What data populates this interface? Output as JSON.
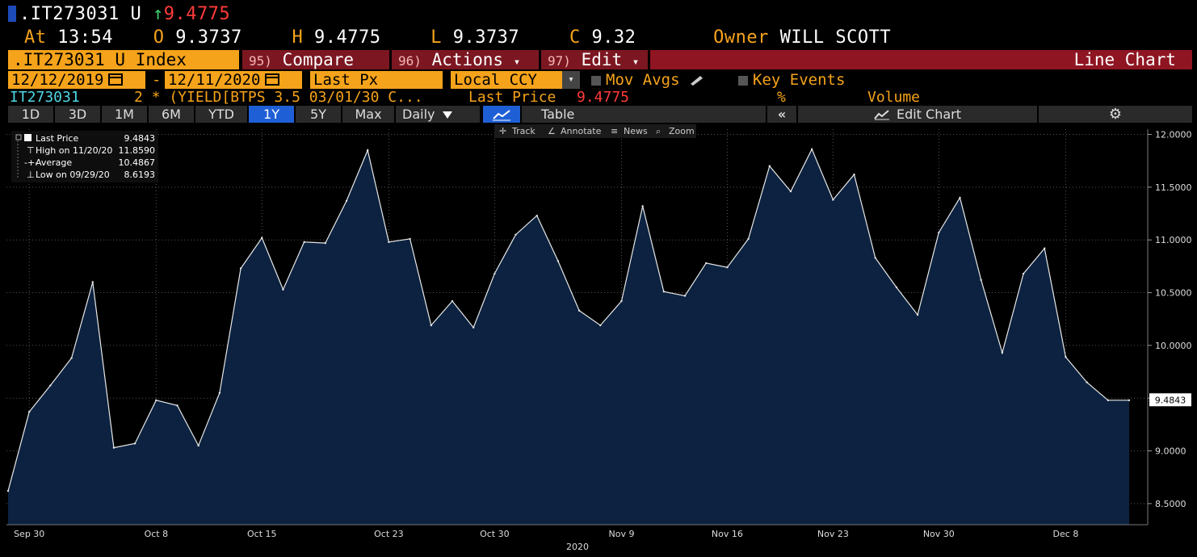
{
  "header": {
    "ticker": ".IT273031 U",
    "arrow": "↑",
    "last": "9.4775",
    "at_label": "At",
    "time": "13:54",
    "open_label": "O",
    "open": "9.3737",
    "high_label": "H",
    "high": "9.4775",
    "low_label": "L",
    "low": "9.3737",
    "close_label": "C",
    "close": "9.32",
    "owner_label": "Owner",
    "owner": "WILL SCOTT"
  },
  "menu": {
    "security": ".IT273031 U Index",
    "compare_num": "95)",
    "compare": "Compare",
    "actions_num": "96)",
    "actions": "Actions",
    "edit_num": "97)",
    "edit": "Edit",
    "dropdown_glyph": "▾",
    "chart_type": "Line Chart"
  },
  "range": {
    "start": "12/12/2019",
    "dash": "-",
    "end": "12/11/2020",
    "field": "Last Px",
    "currency": "Local CCY",
    "mov_avgs": "Mov Avgs",
    "key_events": "Key Events"
  },
  "legend_row": {
    "id": "IT273031",
    "formula": "2 * (YIELD[BTPS 3.5 03/01/30 C...",
    "last_label": "Last Price",
    "last_value": "9.4775",
    "pct": "%",
    "volume": "Volume"
  },
  "toolbar": {
    "periods": [
      "1D",
      "3D",
      "1M",
      "6M",
      "YTD",
      "1Y",
      "5Y",
      "Max"
    ],
    "selected_period": "1Y",
    "frequency": "Daily",
    "table": "Table",
    "collapse_glyph": "«",
    "edit_chart": "Edit Chart",
    "gear_glyph": "⚙"
  },
  "chart_tools": {
    "track": "Track",
    "annotate": "Annotate",
    "news": "News",
    "zoom": "Zoom"
  },
  "legend_box": {
    "items": [
      {
        "label": "Last Price",
        "value": "9.4843"
      },
      {
        "label": "High on 11/20/20",
        "value": "11.8590"
      },
      {
        "label": "Average",
        "value": "10.4867"
      },
      {
        "label": "Low on 09/29/20",
        "value": "8.6193"
      }
    ]
  },
  "colors": {
    "line": "#e8e8e8",
    "fill": "#0c2240",
    "accent": "#f5a31a",
    "menu": "#7c1721"
  },
  "chart_data": {
    "type": "area",
    "title": "",
    "xlabel": "2020",
    "ylabel": "",
    "ylim": [
      8.3,
      12.05
    ],
    "y_ticks": [
      "8.5000",
      "9.0000",
      "9.5000",
      "10.0000",
      "10.5000",
      "11.0000",
      "11.5000",
      "12.0000"
    ],
    "x_tick_labels": [
      "Sep 30",
      "Oct 8",
      "Oct 15",
      "Oct 23",
      "Oct 30",
      "Nov 9",
      "Nov 16",
      "Nov 23",
      "Nov 30",
      "Dec 8"
    ],
    "last_value_label": "9.4843",
    "series": [
      {
        "name": "Last Price",
        "x": [
          "09/29",
          "09/30",
          "10/01",
          "10/02",
          "10/05",
          "10/06",
          "10/07",
          "10/08",
          "10/09",
          "10/12",
          "10/13",
          "10/14",
          "10/15",
          "10/16",
          "10/19",
          "10/20",
          "10/21",
          "10/22",
          "10/23",
          "10/26",
          "10/27",
          "10/28",
          "10/29",
          "10/30",
          "11/02",
          "11/03",
          "11/04",
          "11/05",
          "11/06",
          "11/09",
          "11/10",
          "11/11",
          "11/12",
          "11/13",
          "11/16",
          "11/17",
          "11/18",
          "11/19",
          "11/20",
          "11/23",
          "11/24",
          "11/25",
          "11/26",
          "11/27",
          "11/30",
          "12/01",
          "12/02",
          "12/03",
          "12/04",
          "12/07",
          "12/08",
          "12/09",
          "12/10",
          "12/11"
        ],
        "values": [
          8.62,
          9.37,
          9.62,
          9.88,
          10.6,
          9.03,
          9.07,
          9.48,
          9.43,
          9.05,
          9.55,
          10.73,
          11.02,
          10.53,
          10.98,
          10.97,
          11.37,
          11.85,
          10.98,
          11.01,
          10.19,
          10.42,
          10.17,
          10.68,
          11.05,
          11.23,
          10.8,
          10.33,
          10.19,
          10.42,
          11.32,
          10.51,
          10.47,
          10.78,
          10.74,
          11.01,
          11.7,
          11.46,
          11.86,
          11.38,
          11.62,
          10.83,
          10.55,
          10.29,
          11.07,
          11.4,
          10.62,
          9.93,
          10.68,
          10.92,
          9.89,
          9.65,
          9.48,
          9.48
        ]
      }
    ]
  }
}
